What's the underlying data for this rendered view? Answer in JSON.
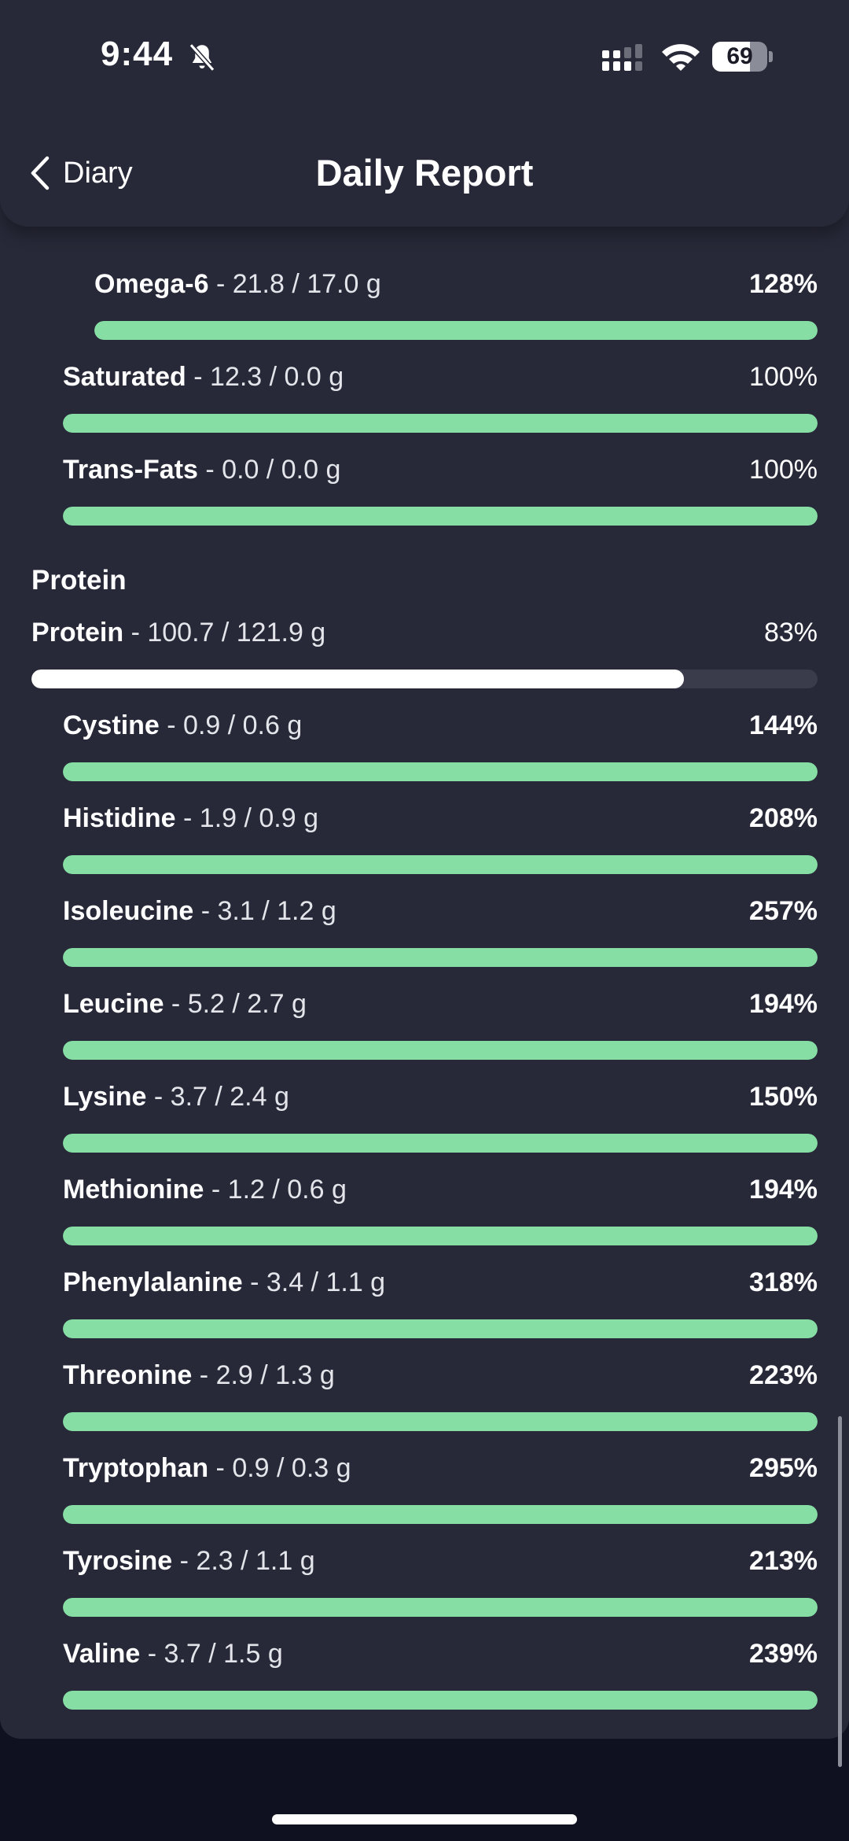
{
  "status_bar": {
    "time": "9:44",
    "battery": "69",
    "battery_level": 0.69,
    "icons": [
      "bell-slash-icon",
      "signal-icon",
      "wifi-icon",
      "battery-icon"
    ]
  },
  "header": {
    "back_label": "Diary",
    "title": "Daily Report"
  },
  "colors": {
    "background": "#272938",
    "track": "#3a3c4b",
    "green_fill": "#86dea4",
    "white_fill": "#ffffff"
  },
  "fats_partial": [
    {
      "name": "Omega-6",
      "amount": "21.8 / 17.0 g",
      "pct": "128%",
      "fraction": 1.0,
      "pct_bold": true,
      "indent": 2
    },
    {
      "name": "Saturated",
      "amount": "12.3 / 0.0 g",
      "pct": "100%",
      "fraction": 1.0,
      "pct_bold": false,
      "indent": 1
    },
    {
      "name": "Trans-Fats",
      "amount": "0.0 / 0.0 g",
      "pct": "100%",
      "fraction": 1.0,
      "pct_bold": false,
      "indent": 1
    }
  ],
  "protein_section": {
    "heading": "Protein",
    "total": {
      "name": "Protein",
      "amount": "100.7 / 121.9 g",
      "pct": "83%",
      "fraction": 0.83,
      "pct_bold": false,
      "indent": 0
    },
    "items": [
      {
        "name": "Cystine",
        "amount": "0.9 / 0.6 g",
        "pct": "144%",
        "fraction": 1.0,
        "pct_bold": true,
        "indent": 1
      },
      {
        "name": "Histidine",
        "amount": "1.9 / 0.9 g",
        "pct": "208%",
        "fraction": 1.0,
        "pct_bold": true,
        "indent": 1
      },
      {
        "name": "Isoleucine",
        "amount": "3.1 / 1.2 g",
        "pct": "257%",
        "fraction": 1.0,
        "pct_bold": true,
        "indent": 1
      },
      {
        "name": "Leucine",
        "amount": "5.2 / 2.7 g",
        "pct": "194%",
        "fraction": 1.0,
        "pct_bold": true,
        "indent": 1
      },
      {
        "name": "Lysine",
        "amount": "3.7 / 2.4 g",
        "pct": "150%",
        "fraction": 1.0,
        "pct_bold": true,
        "indent": 1
      },
      {
        "name": "Methionine",
        "amount": "1.2 / 0.6 g",
        "pct": "194%",
        "fraction": 1.0,
        "pct_bold": true,
        "indent": 1
      },
      {
        "name": "Phenylalanine",
        "amount": "3.4 / 1.1 g",
        "pct": "318%",
        "fraction": 1.0,
        "pct_bold": true,
        "indent": 1
      },
      {
        "name": "Threonine",
        "amount": "2.9 / 1.3 g",
        "pct": "223%",
        "fraction": 1.0,
        "pct_bold": true,
        "indent": 1
      },
      {
        "name": "Tryptophan",
        "amount": "0.9 / 0.3 g",
        "pct": "295%",
        "fraction": 1.0,
        "pct_bold": true,
        "indent": 1
      },
      {
        "name": "Tyrosine",
        "amount": "2.3 / 1.1 g",
        "pct": "213%",
        "fraction": 1.0,
        "pct_bold": true,
        "indent": 1
      },
      {
        "name": "Valine",
        "amount": "3.7 / 1.5 g",
        "pct": "239%",
        "fraction": 1.0,
        "pct_bold": true,
        "indent": 1
      }
    ]
  }
}
